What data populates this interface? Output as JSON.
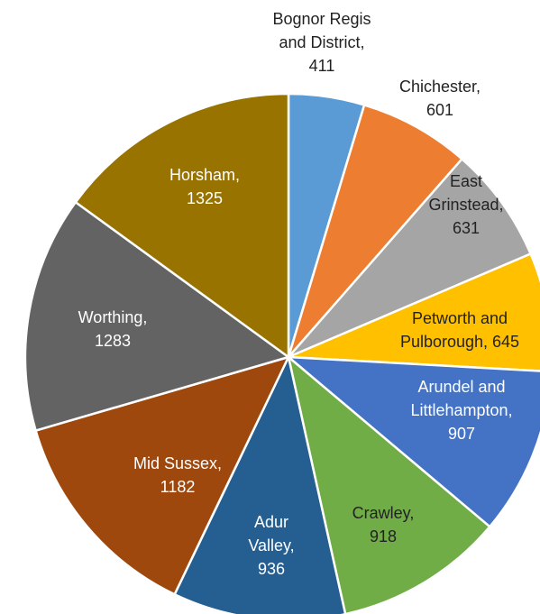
{
  "chart_data": {
    "type": "pie",
    "categories": [
      [
        "Bognor Regis",
        "and District,"
      ],
      [
        "Chichester,"
      ],
      [
        "East",
        "Grinstead,"
      ],
      [
        "Petworth and",
        "Pulborough,"
      ],
      [
        "Arundel and",
        "Littlehampton,"
      ],
      [
        "Crawley,"
      ],
      [
        "Adur",
        "Valley,"
      ],
      [
        "Mid Sussex,"
      ],
      [
        "Worthing,"
      ],
      [
        "Horsham,"
      ]
    ],
    "values": [
      411,
      601,
      631,
      645,
      907,
      918,
      936,
      1182,
      1283,
      1325
    ],
    "colors": [
      "#5b9bd5",
      "#ed7d31",
      "#a5a5a5",
      "#ffc000",
      "#4472c4",
      "#70ad47",
      "#255e91",
      "#9e480e",
      "#636363",
      "#997300"
    ],
    "label_colors": [
      "#222222",
      "#222222",
      "#222222",
      "#222222",
      "#ffffff",
      "#222222",
      "#ffffff",
      "#ffffff",
      "#ffffff",
      "#ffffff"
    ]
  }
}
